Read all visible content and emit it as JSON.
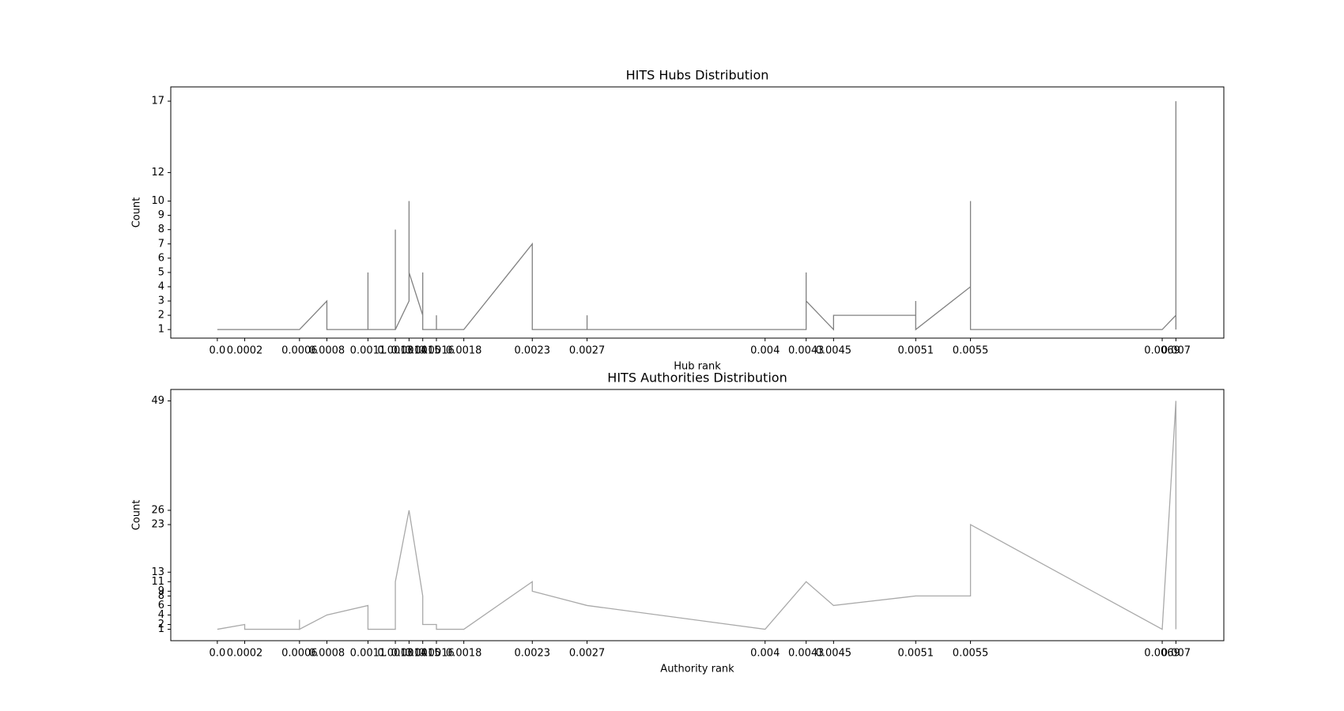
{
  "chart_data": [
    {
      "type": "line",
      "title": "HITS Hubs Distribution",
      "xlabel": "Hub rank",
      "ylabel": "Count",
      "x": [
        0,
        0.0002,
        0.0006,
        0.0008,
        0.0008,
        0.0011,
        0.0011,
        0.0011,
        0.0013,
        0.0013,
        0.0013,
        0.0014,
        0.0014,
        0.0014,
        0.0015,
        0.0015,
        0.0015,
        0.0016,
        0.0016,
        0.0016,
        0.0018,
        0.0023,
        0.0023,
        0.0023,
        0.0027,
        0.0027,
        0.0027,
        0.004,
        0.0043,
        0.0043,
        0.0043,
        0.0045,
        0.0045,
        0.0051,
        0.0051,
        0.0051,
        0.0055,
        0.0055,
        0.0055,
        0.0055,
        0.0055,
        0.0069,
        0.007,
        0.007,
        0.007
      ],
      "series": [
        {
          "color": "#808080",
          "values": [
            1,
            1,
            1,
            3,
            1,
            1,
            5,
            1,
            1,
            8,
            1,
            3,
            10,
            5,
            2,
            5,
            1,
            1,
            2,
            1,
            1,
            7,
            4,
            1,
            1,
            2,
            1,
            1,
            1,
            5,
            3,
            1,
            2,
            2,
            3,
            1,
            4,
            10,
            2,
            7,
            1,
            1,
            2,
            17,
            1
          ]
        }
      ],
      "xlim": [
        -0.00034,
        0.00735
      ],
      "ylim": [
        0.4,
        18
      ],
      "xticks": [
        {
          "value": 0,
          "label": "0.0"
        },
        0.0002,
        0.0006,
        0.0008,
        0.0011,
        0.0013,
        0.0014,
        0.0015,
        0.0016,
        0.0018,
        0.0023,
        0.0027,
        0.004,
        0.0043,
        0.0045,
        0.0051,
        0.0055,
        0.0069,
        0.007
      ],
      "yticks": [
        1,
        2,
        3,
        4,
        5,
        6,
        7,
        8,
        9,
        10,
        12,
        17
      ]
    },
    {
      "type": "line",
      "title": "HITS Authorities Distribution",
      "xlabel": "Authority rank",
      "ylabel": "Count",
      "x": [
        0,
        0.0002,
        0.0002,
        0.0006,
        0.0006,
        0.0006,
        0.0008,
        0.0011,
        0.0011,
        0.0013,
        0.0013,
        0.0014,
        0.0015,
        0.0015,
        0.0016,
        0.0016,
        0.0018,
        0.0023,
        0.0023,
        0.0027,
        0.004,
        0.0043,
        0.0045,
        0.0051,
        0.0055,
        0.0055,
        0.0069,
        0.007,
        0.007
      ],
      "series": [
        {
          "color": "#a9a9a9",
          "values": [
            1,
            2,
            1,
            1,
            3,
            1,
            4,
            6,
            1,
            1,
            11,
            26,
            8,
            2,
            2,
            1,
            1,
            11,
            9,
            6,
            1,
            11,
            6,
            8,
            8,
            23,
            1,
            49,
            1
          ]
        }
      ],
      "xlim": [
        -0.00034,
        0.00735
      ],
      "ylim": [
        -1.4,
        51.4
      ],
      "xticks": [
        {
          "value": 0,
          "label": "0.0"
        },
        0.0002,
        0.0006,
        0.0008,
        0.0011,
        0.0013,
        0.0014,
        0.0015,
        0.0016,
        0.0018,
        0.0023,
        0.0027,
        0.004,
        0.0043,
        0.0045,
        0.0051,
        0.0055,
        0.0069,
        0.007
      ],
      "yticks": [
        1,
        2,
        4,
        6,
        8,
        9,
        11,
        13,
        23,
        26,
        49
      ]
    }
  ]
}
